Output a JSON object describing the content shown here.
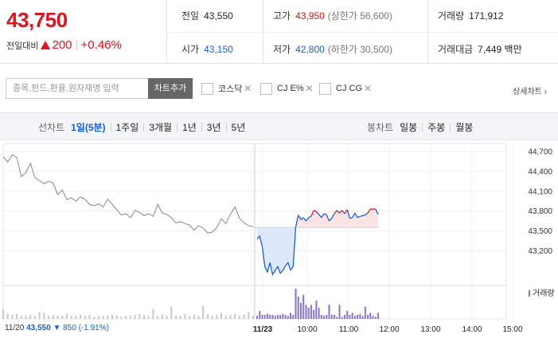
{
  "summary": {
    "price": "43,750",
    "change_label": "전일대비",
    "change_value": "200",
    "change_pct": "+0.46%",
    "prev_close_label": "전일",
    "prev_close": "43,550",
    "open_label": "시가",
    "open": "43,150",
    "high_label": "고가",
    "high": "43,950",
    "upper_limit": "(상한가 56,600)",
    "low_label": "저가",
    "low": "42,800",
    "lower_limit": "(하한가 30,500)",
    "volume_label": "거래량",
    "volume": "171,912",
    "amount_label": "거래대금",
    "amount": "7,449 백만"
  },
  "search": {
    "placeholder": "종목,펀드,환율,원자재명 입력",
    "add_button": "차트추가",
    "compare": [
      {
        "label": "코스닥",
        "checked": false
      },
      {
        "label": "CJ E%",
        "checked": false
      },
      {
        "label": "CJ CG",
        "checked": false
      }
    ],
    "detail_link": "상세차트"
  },
  "period": {
    "line_title": "선차트",
    "line_items": [
      {
        "label": "1일(5분)",
        "active": true
      },
      {
        "label": "1주일",
        "active": false
      },
      {
        "label": "3개월",
        "active": false
      },
      {
        "label": "1년",
        "active": false
      },
      {
        "label": "3년",
        "active": false
      },
      {
        "label": "5년",
        "active": false
      }
    ],
    "candle_title": "봉차트",
    "candle_items": [
      {
        "label": "일봉"
      },
      {
        "label": "주봉"
      },
      {
        "label": "월봉"
      }
    ]
  },
  "chart_data": {
    "type": "line",
    "colors": {
      "up": "#e0141e",
      "down": "#1a5fd1",
      "prev": "#888888",
      "fill": "#dde9fb",
      "volume_today": "#8a73c9",
      "volume_prev": "#c8c8c8"
    },
    "y_ticks": [
      44700,
      44400,
      44100,
      43800,
      43500,
      43200
    ],
    "y_tick_labels": [
      "44,700",
      "44,400",
      "44,100",
      "43,800",
      "43,500",
      "43,200"
    ],
    "ylim": [
      42700,
      44820
    ],
    "base_price": 43550,
    "x_tick_labels": [
      "11/23",
      "10:00",
      "11:00",
      "12:00",
      "13:00",
      "14:00",
      "15:00"
    ],
    "volume_legend": "거래량",
    "prev_day": {
      "date": "11/20",
      "close": "43,550",
      "change": "850",
      "change_pct": "(-1.91%)",
      "prices": [
        44620,
        44540,
        44650,
        44610,
        44320,
        44380,
        44520,
        44300,
        44260,
        44210,
        44250,
        44220,
        44050,
        44120,
        43970,
        44000,
        43950,
        44010,
        43980,
        43900,
        43880,
        43910,
        43860,
        43980,
        43900,
        43820,
        43740,
        43760,
        43700,
        43810,
        43780,
        43730,
        43760,
        43720,
        43900,
        43770,
        43750,
        43700,
        43620,
        43640,
        43610,
        43590,
        43510,
        43580,
        43540,
        43470,
        43480,
        43550,
        43680,
        43610,
        43750,
        43860,
        43690,
        43620,
        43580,
        43560
      ],
      "volumes": [
        10,
        5,
        4,
        5,
        3,
        3,
        4,
        3,
        7,
        6,
        3,
        4,
        3,
        3,
        5,
        3,
        3,
        4,
        3,
        4,
        2,
        3,
        3,
        3,
        4,
        3,
        2,
        3,
        3,
        4,
        5,
        4,
        3,
        10,
        3,
        4,
        3,
        12,
        3,
        3,
        5,
        3,
        4,
        3,
        13,
        5,
        3,
        4,
        6,
        3,
        4,
        5,
        3,
        4,
        7,
        3
      ]
    },
    "today": {
      "prices": [
        43380,
        43420,
        43260,
        42960,
        42880,
        43020,
        42840,
        42900,
        42960,
        42860,
        42900,
        42970,
        43020,
        42910,
        42960,
        43560,
        43740,
        43670,
        43700,
        43650,
        43700,
        43720,
        43810,
        43790,
        43750,
        43700,
        43760,
        43740,
        43650,
        43690,
        43760,
        43810,
        43770,
        43810,
        43760,
        43820,
        43690,
        43700,
        43770,
        43700,
        43720,
        43730,
        43740,
        43770,
        43830,
        43830,
        43830,
        43750
      ],
      "volumes": [
        3,
        8,
        4,
        4,
        5,
        4,
        4,
        3,
        4,
        4,
        5,
        4,
        3,
        6,
        4,
        30,
        22,
        16,
        24,
        14,
        11,
        14,
        9,
        18,
        11,
        4,
        3,
        4,
        14,
        4,
        4,
        2,
        14,
        2,
        4,
        8,
        4,
        6,
        3,
        4,
        5,
        3,
        12,
        4,
        6,
        3,
        2,
        6
      ]
    }
  }
}
